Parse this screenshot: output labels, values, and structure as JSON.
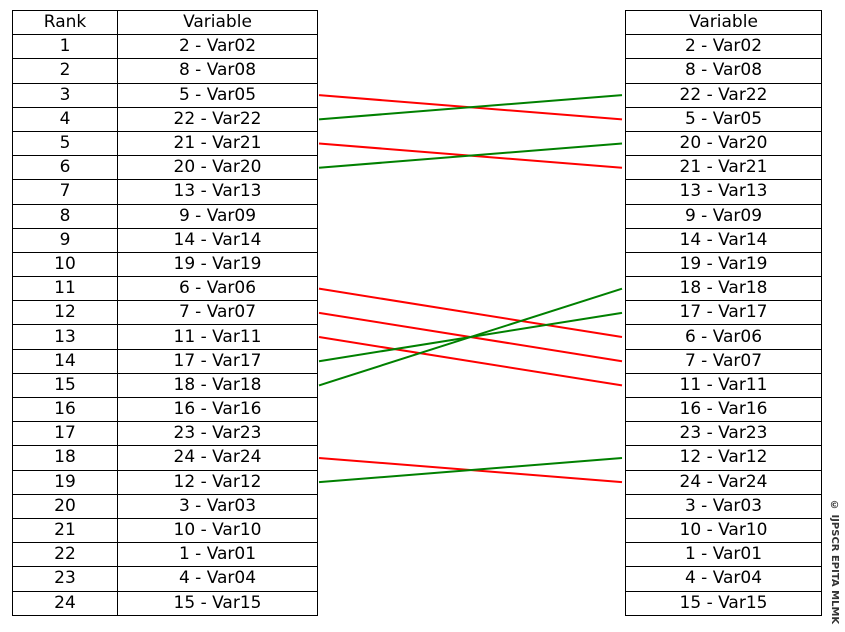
{
  "left_table": {
    "headers": [
      "Rank",
      "Variable"
    ],
    "rows": [
      [
        "1",
        "2 - Var02"
      ],
      [
        "2",
        "8 - Var08"
      ],
      [
        "3",
        "5 - Var05"
      ],
      [
        "4",
        "22 - Var22"
      ],
      [
        "5",
        "21 - Var21"
      ],
      [
        "6",
        "20 - Var20"
      ],
      [
        "7",
        "13 - Var13"
      ],
      [
        "8",
        "9 - Var09"
      ],
      [
        "9",
        "14 - Var14"
      ],
      [
        "10",
        "19 - Var19"
      ],
      [
        "11",
        "6 - Var06"
      ],
      [
        "12",
        "7 - Var07"
      ],
      [
        "13",
        "11 - Var11"
      ],
      [
        "14",
        "17 - Var17"
      ],
      [
        "15",
        "18 - Var18"
      ],
      [
        "16",
        "16 - Var16"
      ],
      [
        "17",
        "23 - Var23"
      ],
      [
        "18",
        "24 - Var24"
      ],
      [
        "19",
        "12 - Var12"
      ],
      [
        "20",
        "3 - Var03"
      ],
      [
        "21",
        "10 - Var10"
      ],
      [
        "22",
        "1 - Var01"
      ],
      [
        "23",
        "4 - Var04"
      ],
      [
        "24",
        "15 - Var15"
      ]
    ]
  },
  "right_table": {
    "header": "Variable",
    "rows": [
      "2 - Var02",
      "8 - Var08",
      "22 - Var22",
      "5 - Var05",
      "20 - Var20",
      "21 - Var21",
      "13 - Var13",
      "9 - Var09",
      "14 - Var14",
      "19 - Var19",
      "18 - Var18",
      "17 - Var17",
      "6 - Var06",
      "7 - Var07",
      "11 - Var11",
      "16 - Var16",
      "23 - Var23",
      "12 - Var12",
      "24 - Var24",
      "3 - Var03",
      "10 - Var10",
      "1 - Var01",
      "4 - Var04",
      "15 - Var15"
    ]
  },
  "rank_changes": [
    {
      "from_rank": 3,
      "to_rank": 4,
      "direction": "down"
    },
    {
      "from_rank": 4,
      "to_rank": 3,
      "direction": "up"
    },
    {
      "from_rank": 5,
      "to_rank": 6,
      "direction": "down"
    },
    {
      "from_rank": 6,
      "to_rank": 5,
      "direction": "up"
    },
    {
      "from_rank": 11,
      "to_rank": 13,
      "direction": "down"
    },
    {
      "from_rank": 12,
      "to_rank": 14,
      "direction": "down"
    },
    {
      "from_rank": 13,
      "to_rank": 15,
      "direction": "down"
    },
    {
      "from_rank": 14,
      "to_rank": 12,
      "direction": "up"
    },
    {
      "from_rank": 15,
      "to_rank": 11,
      "direction": "up"
    },
    {
      "from_rank": 18,
      "to_rank": 19,
      "direction": "down"
    },
    {
      "from_rank": 19,
      "to_rank": 18,
      "direction": "up"
    }
  ],
  "colors": {
    "down": "#ff0000",
    "up": "#008000",
    "border": "#000000"
  },
  "watermark": "© IJPSCR EPITA MLMK"
}
